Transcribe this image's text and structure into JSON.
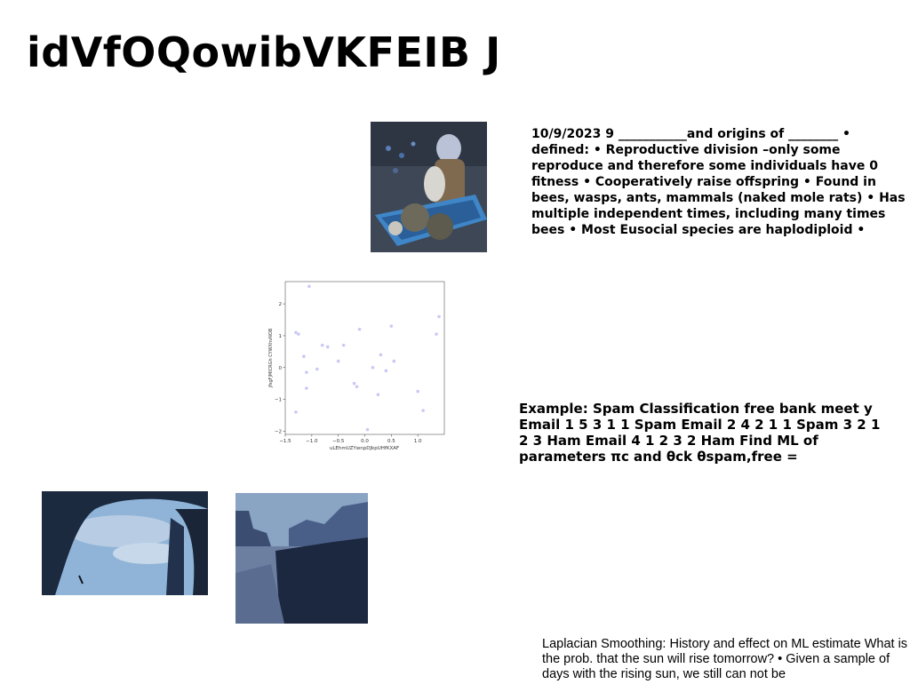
{
  "title": "idVfOQowibVKFEIB J",
  "text_blocks": {
    "eusocial": "10/9/2023 9 ___________and origins of ________ • defined: • Reproductive division –only some reproduce and therefore some individuals have 0 fitness • Cooperatively raise offspring • Found in bees, wasps, ants, mammals (naked mole rats) • Has multiple independent times, including many times bees • Most Eusocial species are haplodiploid •",
    "spam": "Example: Spam Classification free bank meet y Email 1 5 3 1 1 Spam Email 2 4 2 1 1 Spam 3 2 1 2 3 Ham Email 4 1 2 3 2 Ham Find ML of parameters πc and θck θspam,free =",
    "laplace": "Laplacian Smoothing: History and effect on ML estimate What is the prob. that the sun will rise tomorrow? • Given a sample of days with the rising sun, we still can not be"
  },
  "images": {
    "child_wheelbarrow": "photo of child with pumpkins in a blue wheelbarrow",
    "cave_arch": "photo of rock arch with climber",
    "canyon": "photo of desert canyon mesas"
  },
  "chart_data": {
    "type": "scatter",
    "title": "",
    "xlabel": "uLEhmUZYwnpDJkpUHfKXAF",
    "ylabel": "jfsgFjMlCRGh CYWXhvNOB",
    "xlim": [
      -1.5,
      1.5
    ],
    "ylim": [
      -2.1,
      2.7
    ],
    "xticks": [
      "−1.5",
      "−1.0",
      "−0.5",
      "0.0",
      "0.5",
      "1.0"
    ],
    "xtick_values": [
      -1.5,
      -1.0,
      -0.5,
      0.0,
      0.5,
      1.0
    ],
    "yticks": [
      "2",
      "1",
      "0",
      "−1",
      "−2"
    ],
    "ytick_values": [
      2,
      1,
      0,
      -1,
      -2
    ],
    "grid": false,
    "point_color": "#c9c9f5",
    "points": [
      {
        "x": -1.05,
        "y": 2.55
      },
      {
        "x": 1.4,
        "y": 1.6
      },
      {
        "x": -1.3,
        "y": 1.1
      },
      {
        "x": -1.25,
        "y": 1.05
      },
      {
        "x": 1.35,
        "y": 1.05
      },
      {
        "x": -0.1,
        "y": 1.2
      },
      {
        "x": 0.5,
        "y": 1.3
      },
      {
        "x": -0.8,
        "y": 0.7
      },
      {
        "x": -0.7,
        "y": 0.65
      },
      {
        "x": -0.4,
        "y": 0.7
      },
      {
        "x": -1.15,
        "y": 0.35
      },
      {
        "x": 0.3,
        "y": 0.4
      },
      {
        "x": -0.5,
        "y": 0.2
      },
      {
        "x": 0.55,
        "y": 0.2
      },
      {
        "x": -0.9,
        "y": -0.05
      },
      {
        "x": 0.15,
        "y": 0.0
      },
      {
        "x": 0.4,
        "y": -0.1
      },
      {
        "x": -1.1,
        "y": -0.15
      },
      {
        "x": -0.2,
        "y": -0.5
      },
      {
        "x": -0.15,
        "y": -0.6
      },
      {
        "x": -1.1,
        "y": -0.65
      },
      {
        "x": 0.25,
        "y": -0.85
      },
      {
        "x": 1.0,
        "y": -0.75
      },
      {
        "x": -1.3,
        "y": -1.4
      },
      {
        "x": 1.1,
        "y": -1.35
      },
      {
        "x": 0.05,
        "y": -1.95
      }
    ]
  }
}
